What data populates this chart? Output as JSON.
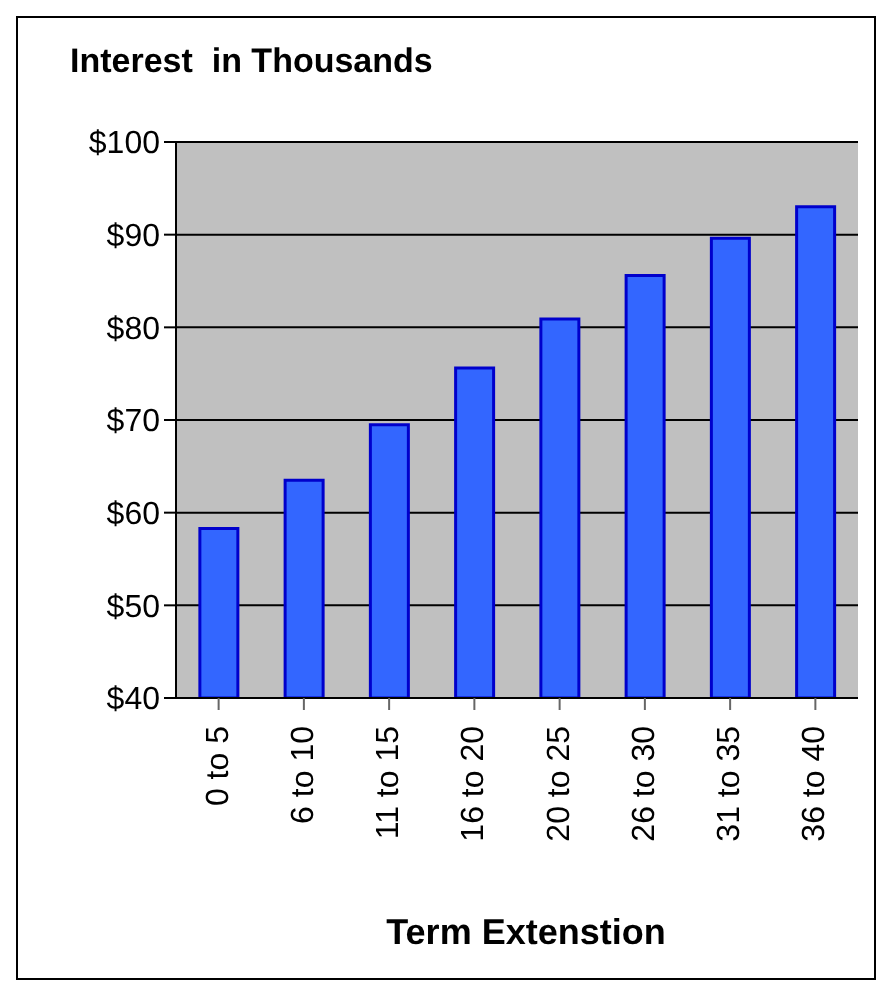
{
  "chart_data": {
    "type": "bar",
    "title": "Interest  in Thousands",
    "xlabel": "Term Extenstion",
    "categories": [
      "0 to 5",
      "6 to 10",
      "11 to 15",
      "16 to 20",
      "20 to 25",
      "26 to 30",
      "31 to 35",
      "36 to 40"
    ],
    "values": [
      58.3,
      63.5,
      69.5,
      75.6,
      80.9,
      85.6,
      89.6,
      93.0
    ],
    "color": "#3366ff",
    "ylim": [
      40,
      100
    ],
    "yticks": [
      {
        "value": 40,
        "label": "$40"
      },
      {
        "value": 50,
        "label": "$50"
      },
      {
        "value": 60,
        "label": "$60"
      },
      {
        "value": 70,
        "label": "$70"
      },
      {
        "value": 80,
        "label": "$80"
      },
      {
        "value": 90,
        "label": "$90"
      },
      {
        "value": 100,
        "label": "$100"
      }
    ],
    "grid": "y"
  }
}
